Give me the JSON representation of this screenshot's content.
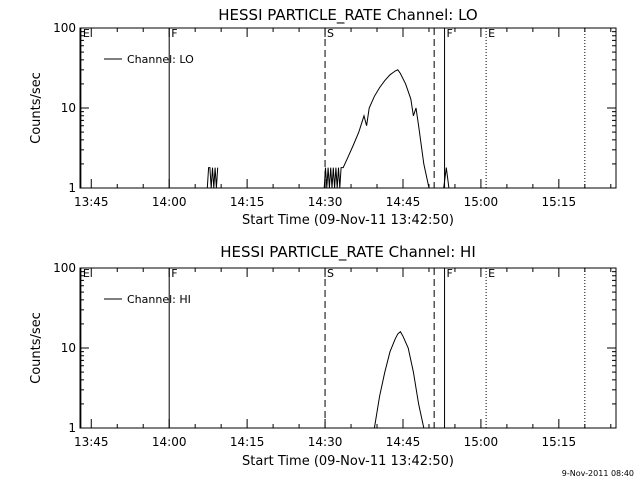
{
  "timestamp": "9-Nov-2011 08:40",
  "chart_data": [
    {
      "type": "line",
      "title": "HESSI PARTICLE_RATE Channel: LO",
      "xlabel": "Start Time (09-Nov-11 13:42:50)",
      "ylabel": "Counts/sec",
      "yscale": "log",
      "xlim": [
        "13:42:50",
        "15:26:00"
      ],
      "ylim": [
        1,
        100
      ],
      "x_ticks": [
        "13:45",
        "14:00",
        "14:15",
        "14:30",
        "14:45",
        "15:00",
        "15:15"
      ],
      "y_ticks": [
        "1",
        "10",
        "100"
      ],
      "legend": {
        "location": "top-left",
        "entries": [
          "Channel: LO"
        ]
      },
      "series": [
        {
          "name": "Channel: LO",
          "x": [
            "14:07:20",
            "14:07:35",
            "14:07:50",
            "14:08:05",
            "14:08:20",
            "14:08:35",
            "14:08:50",
            "14:09:05",
            "14:09:20",
            "14:29:50",
            "14:30:05",
            "14:30:20",
            "14:30:35",
            "14:30:50",
            "14:31:05",
            "14:31:20",
            "14:31:35",
            "14:31:50",
            "14:32:05",
            "14:32:20",
            "14:32:35",
            "14:32:50",
            "14:33:05",
            "14:33:30",
            "14:34:30",
            "14:35:30",
            "14:36:30",
            "14:37:30",
            "14:38:00",
            "14:38:30",
            "14:39:30",
            "14:40:30",
            "14:41:30",
            "14:42:30",
            "14:43:30",
            "14:44:00",
            "14:44:30",
            "14:45:30",
            "14:46:30",
            "14:47:00",
            "14:47:30",
            "14:48:00",
            "14:49:00",
            "14:50:00",
            "14:52:50",
            "14:53:20",
            "14:53:50"
          ],
          "values": [
            1,
            1.8,
            1.8,
            1,
            1.8,
            1,
            1.8,
            1,
            1.8,
            1,
            1.8,
            1,
            1.8,
            1,
            1.8,
            1,
            1.8,
            1,
            1.8,
            1,
            1.8,
            1,
            1.8,
            1.8,
            2.5,
            3.5,
            5,
            8,
            6,
            10,
            14,
            18,
            22,
            26,
            29,
            30,
            27,
            20,
            13,
            8,
            10,
            6,
            2,
            1,
            1,
            1.8,
            1
          ]
        }
      ],
      "markers": [
        {
          "label": "E",
          "time": "13:43:00",
          "style": "solid"
        },
        {
          "label": "F",
          "time": "14:00:00",
          "style": "solid"
        },
        {
          "label": "S",
          "time": "14:30:00",
          "style": "dashed"
        },
        {
          "label": "",
          "time": "14:51:00",
          "style": "dashed"
        },
        {
          "label": "F",
          "time": "14:53:00",
          "style": "solid"
        },
        {
          "label": "E",
          "time": "15:01:00",
          "style": "dotted"
        },
        {
          "label": "",
          "time": "15:20:00",
          "style": "dotted"
        }
      ]
    },
    {
      "type": "line",
      "title": "HESSI PARTICLE_RATE Channel: HI",
      "xlabel": "Start Time (09-Nov-11 13:42:50)",
      "ylabel": "Counts/sec",
      "yscale": "log",
      "xlim": [
        "13:42:50",
        "15:26:00"
      ],
      "ylim": [
        1,
        100
      ],
      "x_ticks": [
        "13:45",
        "14:00",
        "14:15",
        "14:30",
        "14:45",
        "15:00",
        "15:15"
      ],
      "y_ticks": [
        "1",
        "10",
        "100"
      ],
      "legend": {
        "location": "top-left",
        "entries": [
          "Channel: HI"
        ]
      },
      "series": [
        {
          "name": "Channel: HI",
          "x": [
            "14:39:30",
            "14:40:30",
            "14:41:30",
            "14:42:30",
            "14:43:30",
            "14:44:00",
            "14:44:30",
            "14:45:00",
            "14:46:00",
            "14:47:00",
            "14:48:00",
            "14:49:00"
          ],
          "values": [
            1,
            2.5,
            5,
            9,
            13,
            15,
            16,
            14,
            10,
            5,
            2,
            1
          ]
        }
      ],
      "markers": [
        {
          "label": "E",
          "time": "13:43:00",
          "style": "solid"
        },
        {
          "label": "F",
          "time": "14:00:00",
          "style": "solid"
        },
        {
          "label": "S",
          "time": "14:30:00",
          "style": "dashed"
        },
        {
          "label": "",
          "time": "14:51:00",
          "style": "dashed"
        },
        {
          "label": "F",
          "time": "14:53:00",
          "style": "solid"
        },
        {
          "label": "E",
          "time": "15:01:00",
          "style": "dotted"
        },
        {
          "label": "",
          "time": "15:20:00",
          "style": "dotted"
        }
      ]
    }
  ]
}
